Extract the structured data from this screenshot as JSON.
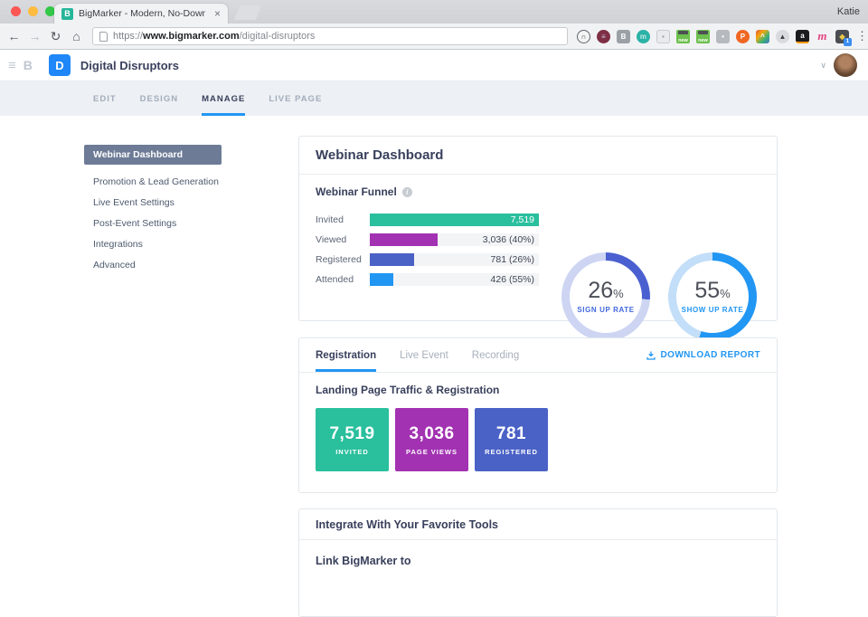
{
  "browser": {
    "traffic_lights": [
      "#fc5753",
      "#fdbc40",
      "#33c748"
    ],
    "tab": {
      "title": "BigMarker - Modern, No-Down",
      "favicon_letter": "B",
      "favicon_color": "#26b69a",
      "close": "×"
    },
    "profile_name": "Katie",
    "toolbar": {
      "back": "←",
      "forward": "→",
      "reload": "↻",
      "home": "⌂",
      "menu": "⋮"
    },
    "url": {
      "scheme": "https://",
      "domain": "www.bigmarker.com",
      "path": "/digital-disruptors"
    },
    "extensions": [
      {
        "name": "headset-extension-icon",
        "shape": "circle",
        "bg": "#f4f4f5",
        "fg": "#3e4247",
        "border": "#5f6469",
        "letter": "∩"
      },
      {
        "name": "globe-flag-extension-icon",
        "shape": "circle",
        "bg": "#7e2f45",
        "fg": "#c8d0e8",
        "letter": "≡"
      },
      {
        "name": "b-square-extension-icon",
        "shape": "square",
        "bg": "#9aa0a6",
        "fg": "#ffffff",
        "letter": "B"
      },
      {
        "name": "m-circle-extension-icon",
        "shape": "circle",
        "bg": "#2ab3a6",
        "fg": "#c9ebe7",
        "letter": "m"
      },
      {
        "name": "screenshot-extension-icon",
        "shape": "square",
        "bg": "#e8eaec",
        "fg": "#9aa0a6",
        "border": "#c8cacd",
        "letter": "▪"
      },
      {
        "name": "new-bed-extension-icon",
        "shape": "newbadge",
        "bg": "#6cc04e",
        "fg": "#ffffff",
        "letter": "new"
      },
      {
        "name": "new-bed-extension-icon-2",
        "shape": "newbadge",
        "bg": "#6cc04e",
        "fg": "#ffffff",
        "letter": "new"
      },
      {
        "name": "person-square-extension-icon",
        "shape": "square",
        "bg": "#b6babf",
        "fg": "#ffffff",
        "letter": "•"
      },
      {
        "name": "product-hunt-extension-icon",
        "shape": "circle",
        "bg": "#f06723",
        "fg": "#ffffff",
        "letter": "P"
      },
      {
        "name": "rainbow-extension-icon",
        "shape": "square",
        "bg": "linear-gradient(135deg,#e4572e,#f3a712,#3bb273,#4472ca)",
        "fg": "#ffffff",
        "letter": "^"
      },
      {
        "name": "ghost-circle-extension-icon",
        "shape": "circle",
        "bg": "#d8dadd",
        "fg": "#3e4247",
        "letter": "▲"
      },
      {
        "name": "amazon-extension-icon",
        "shape": "amazon",
        "bg": "#1b1c1d",
        "fg": "#ffffff",
        "letter": "a"
      },
      {
        "name": "cursive-m-extension-icon",
        "shape": "plain",
        "fg": "#e2447e",
        "letter": "m"
      },
      {
        "name": "notifier-extension-icon",
        "shape": "badge1",
        "bg": "#4a4d52",
        "fg": "#e8c84a",
        "letter": "◆",
        "badge": "1",
        "badge_bg": "#3b8df2"
      }
    ]
  },
  "app_header": {
    "collapse_icon": "≡",
    "brand_letter": "B",
    "logo_letter": "D",
    "logo_color": "#1f87f7",
    "title": "Digital Disruptors",
    "avatar_chevron": "∨"
  },
  "nav_tabs": [
    {
      "label": "EDIT",
      "active": false
    },
    {
      "label": "DESIGN",
      "active": false
    },
    {
      "label": "MANAGE",
      "active": true
    },
    {
      "label": "LIVE PAGE",
      "active": false
    }
  ],
  "sidebar": {
    "items": [
      {
        "label": "Webinar Dashboard",
        "active": true
      },
      {
        "label": "Promotion & Lead Generation",
        "active": false
      },
      {
        "label": "Live Event Settings",
        "active": false
      },
      {
        "label": "Post-Event Settings",
        "active": false
      },
      {
        "label": "Integrations",
        "active": false
      },
      {
        "label": "Advanced",
        "active": false
      }
    ]
  },
  "dashboard": {
    "card_title": "Webinar Dashboard",
    "funnel_title": "Webinar Funnel",
    "report_tabs": [
      {
        "label": "Registration",
        "active": true
      },
      {
        "label": "Live Event",
        "active": false
      },
      {
        "label": "Recording",
        "active": false
      }
    ],
    "download_label": "DOWNLOAD REPORT",
    "section_title": "Landing Page Traffic & Registration",
    "integrate_title": "Integrate With Your Favorite Tools",
    "partial_text": "Link BigMarker to"
  },
  "chart_data": [
    {
      "type": "bar",
      "title": "Webinar Funnel",
      "orientation": "horizontal",
      "categories": [
        "Invited",
        "Viewed",
        "Registered",
        "Attended"
      ],
      "values": [
        7519,
        3036,
        781,
        426
      ],
      "value_labels": [
        "7,519",
        "3,036 (40%)",
        "781 (26%)",
        "426 (55%)"
      ],
      "bar_display_pct": [
        100,
        40,
        26,
        14
      ],
      "colors": [
        "#2abf9d",
        "#a232b2",
        "#4a62c6",
        "#2196f3"
      ],
      "track_color": "#f3f4f6",
      "grid": false,
      "legend": false
    },
    {
      "type": "pie",
      "variant": "donut",
      "donuts": [
        {
          "value": "26",
          "suffix": "%",
          "label": "SIGN UP RATE",
          "percent": 26,
          "color": "#4a5fd0",
          "track": "#cdd5f3",
          "label_color": "#4168dd"
        },
        {
          "value": "55",
          "suffix": "%",
          "label": "SHOW UP RATE",
          "percent": 55,
          "color": "#2196f3",
          "track": "#c3def8",
          "label_color": "#2196f3"
        }
      ]
    },
    {
      "type": "table",
      "title": "Landing Page Traffic & Registration",
      "items": [
        {
          "value": "7,519",
          "label": "INVITED",
          "color": "#2abf9d"
        },
        {
          "value": "3,036",
          "label": "PAGE VIEWS",
          "color": "#a232b2"
        },
        {
          "value": "781",
          "label": "REGISTERED",
          "color": "#4a62c6"
        }
      ]
    }
  ]
}
